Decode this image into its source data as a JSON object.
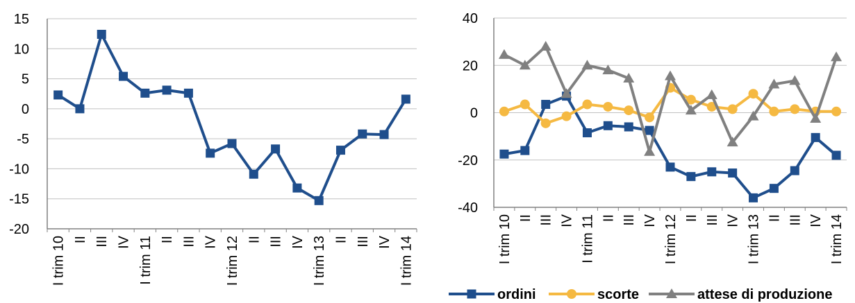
{
  "colors": {
    "ordini": "#1f4e8c",
    "scorte": "#f5b942",
    "attese": "#808080",
    "grid": "#c0c0c0",
    "axis": "#808080"
  },
  "chart_data": [
    {
      "type": "line",
      "categories": [
        "I trim 10",
        "II",
        "III",
        "IV",
        "I trim 11",
        "II",
        "III",
        "IV",
        "I trim 12",
        "II",
        "III",
        "IV",
        "I trim 13",
        "II",
        "III",
        "IV",
        "I trim 14"
      ],
      "ylim": [
        -20,
        15
      ],
      "yticks": [
        15,
        10,
        5,
        0,
        -5,
        -10,
        -15,
        -20
      ],
      "grid": true,
      "series": [
        {
          "key": "ordini",
          "values": [
            2.3,
            0,
            12.4,
            5.4,
            2.6,
            3.1,
            2.6,
            -7.4,
            -5.8,
            -10.9,
            -6.7,
            -13.2,
            -15.3,
            -6.9,
            -4.2,
            -4.3,
            1.6
          ]
        }
      ]
    },
    {
      "type": "line",
      "categories": [
        "I trim 10",
        "II",
        "III",
        "IV",
        "I trim 11",
        "II",
        "III",
        "IV",
        "I trim 12",
        "II",
        "III",
        "IV",
        "I trim 13",
        "II",
        "III",
        "IV",
        "I trim 14"
      ],
      "ylim": [
        -40,
        40
      ],
      "yticks": [
        40,
        20,
        0,
        -20,
        -40
      ],
      "grid": true,
      "legend_position": "bottom",
      "series": [
        {
          "key": "ordini",
          "name": "ordini",
          "marker": "square",
          "values": [
            -17.5,
            -16,
            3.5,
            7,
            -8.5,
            -5.5,
            -6,
            -7.5,
            -23,
            -27,
            -25,
            -25.5,
            -36,
            -32,
            -24.5,
            -10.5,
            -18
          ]
        },
        {
          "key": "scorte",
          "name": "scorte",
          "marker": "circle",
          "values": [
            0.5,
            3.5,
            -4.5,
            -1.5,
            3.5,
            2.5,
            1,
            -2,
            10.5,
            5.5,
            2.5,
            1.5,
            8,
            0.5,
            1.5,
            0.5,
            0.5
          ]
        },
        {
          "key": "attese",
          "name": "attese di produzione",
          "marker": "triangle",
          "values": [
            24.5,
            20,
            28,
            8,
            20,
            18,
            14.5,
            -16.5,
            15.5,
            1,
            7.5,
            -12.5,
            -1.5,
            12,
            13.5,
            -2.5,
            23.5
          ]
        }
      ]
    }
  ]
}
